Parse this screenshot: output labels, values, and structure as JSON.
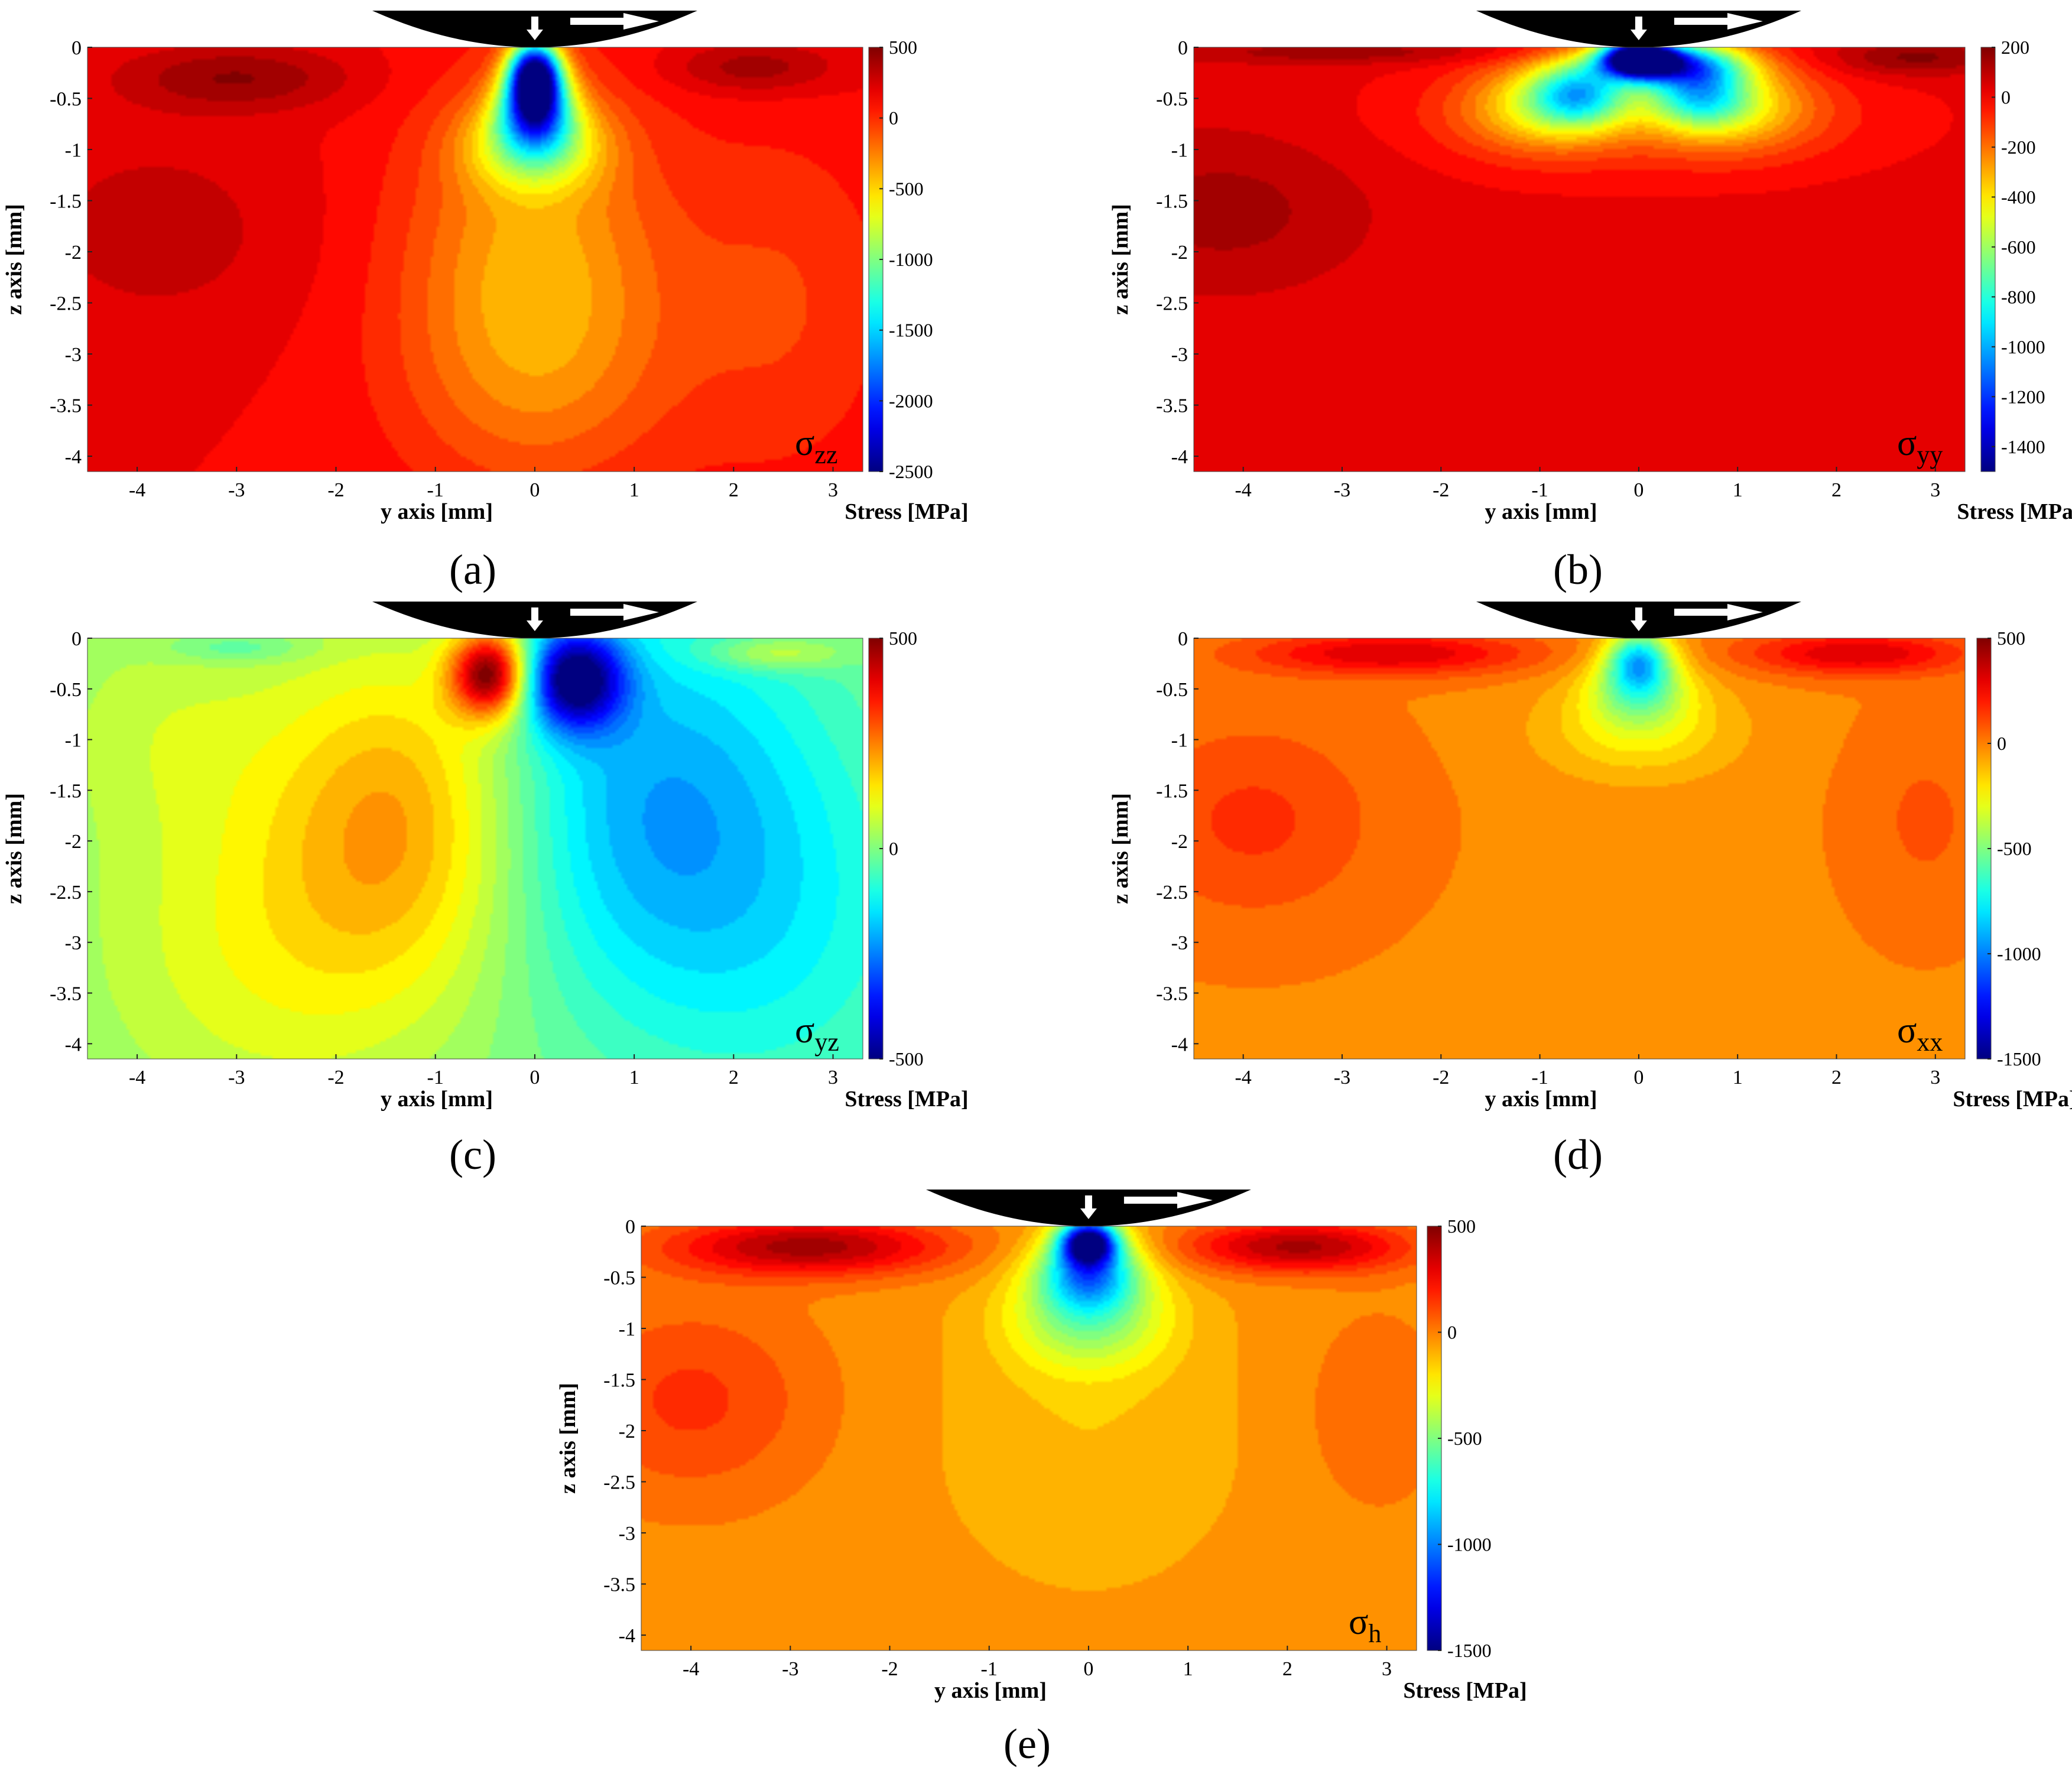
{
  "figure": {
    "panels": [
      {
        "id": "a",
        "caption": "(a)",
        "symbol": "σ",
        "subscript": "zz"
      },
      {
        "id": "b",
        "caption": "(b)",
        "symbol": "σ",
        "subscript": "yy"
      },
      {
        "id": "c",
        "caption": "(c)",
        "symbol": "σ",
        "subscript": "yz"
      },
      {
        "id": "d",
        "caption": "(d)",
        "symbol": "σ",
        "subscript": "xx"
      },
      {
        "id": "e",
        "caption": "(e)",
        "symbol": "σ",
        "subscript": "h"
      }
    ]
  },
  "chart_data": [
    {
      "panel": "a",
      "type": "heatmap",
      "title": "σzz",
      "xlabel": "y axis [mm]",
      "ylabel": "z axis [mm]",
      "colorbar_label": "Stress [MPa]",
      "xlim": [
        -4.5,
        3.3
      ],
      "ylim": [
        -4.15,
        0
      ],
      "xticks": [
        -4,
        -3,
        -2,
        -1,
        0,
        1,
        2,
        3
      ],
      "yticks": [
        0,
        -0.5,
        -1,
        -1.5,
        -2,
        -2.5,
        -3,
        -3.5,
        -4
      ],
      "colorbar_range": [
        -2500,
        500
      ],
      "colorbar_ticks": [
        500,
        0,
        -500,
        -1000,
        -1500,
        -2000,
        -2500
      ],
      "colormap": "jet",
      "background_value": 150,
      "features": [
        {
          "y": 0.0,
          "z": -0.25,
          "sy": 0.18,
          "sz": 0.22,
          "value": -2300
        },
        {
          "y": 0.0,
          "z": -0.6,
          "sy": 0.25,
          "sz": 0.25,
          "value": -1500
        },
        {
          "y": 0.0,
          "z": -0.95,
          "sy": 0.45,
          "sz": 0.3,
          "value": -700
        },
        {
          "y": 0.0,
          "z": -1.8,
          "sy": 0.9,
          "sz": 1.1,
          "value": -300
        },
        {
          "y": 0.0,
          "z": -3.2,
          "sy": 1.0,
          "sz": 0.9,
          "value": -150
        },
        {
          "y": -3.0,
          "z": -0.3,
          "sy": 0.8,
          "sz": 0.22,
          "value": 450
        },
        {
          "y": 2.2,
          "z": -0.2,
          "sy": 0.6,
          "sz": 0.18,
          "value": 430
        },
        {
          "y": -3.8,
          "z": -1.8,
          "sy": 1.0,
          "sz": 0.7,
          "value": 300
        },
        {
          "y": 2.5,
          "z": -2.5,
          "sy": 0.8,
          "sz": 1.2,
          "value": -50
        }
      ]
    },
    {
      "panel": "b",
      "type": "heatmap",
      "title": "σyy",
      "xlabel": "y axis [mm]",
      "ylabel": "z axis [mm]",
      "colorbar_label": "Stress [MPa]",
      "xlim": [
        -4.5,
        3.3
      ],
      "ylim": [
        -4.15,
        0
      ],
      "xticks": [
        -4,
        -3,
        -2,
        -1,
        0,
        1,
        2,
        3
      ],
      "yticks": [
        0,
        -0.5,
        -1,
        -1.5,
        -2,
        -2.5,
        -3,
        -3.5,
        -4
      ],
      "colorbar_range": [
        -1500,
        200
      ],
      "colorbar_ticks": [
        200,
        0,
        -200,
        -400,
        -600,
        -800,
        -1000,
        -1200,
        -1400
      ],
      "colormap": "jet",
      "background_value": 20,
      "features": [
        {
          "y": 0.0,
          "z": -0.1,
          "sy": 0.25,
          "sz": 0.12,
          "value": -1400
        },
        {
          "y": 0.3,
          "z": -0.15,
          "sy": 0.5,
          "sz": 0.15,
          "value": -900
        },
        {
          "y": -0.6,
          "z": -0.45,
          "sy": 0.35,
          "sz": 0.22,
          "value": -650
        },
        {
          "y": 0.6,
          "z": -0.45,
          "sy": 0.35,
          "sz": 0.22,
          "value": -600
        },
        {
          "y": -1.0,
          "z": -0.55,
          "sy": 0.55,
          "sz": 0.3,
          "value": -300
        },
        {
          "y": 1.0,
          "z": -0.55,
          "sy": 0.55,
          "sz": 0.3,
          "value": -280
        },
        {
          "y": 0.0,
          "z": -0.7,
          "sy": 1.5,
          "sz": 0.35,
          "value": -150
        },
        {
          "y": -4.2,
          "z": -1.6,
          "sy": 1.0,
          "sz": 0.55,
          "value": 140
        },
        {
          "y": 2.8,
          "z": -0.1,
          "sy": 0.6,
          "sz": 0.12,
          "value": 190
        },
        {
          "y": -3.0,
          "z": -0.05,
          "sy": 1.2,
          "sz": 0.08,
          "value": 150
        }
      ]
    },
    {
      "panel": "c",
      "type": "heatmap",
      "title": "σyz",
      "xlabel": "y axis [mm]",
      "ylabel": "z axis [mm]",
      "colorbar_label": "Stress [MPa]",
      "xlim": [
        -4.5,
        3.3
      ],
      "ylim": [
        -4.15,
        0
      ],
      "xticks": [
        -4,
        -3,
        -2,
        -1,
        0,
        1,
        2,
        3
      ],
      "yticks": [
        0,
        -0.5,
        -1,
        -1.5,
        -2,
        -2.5,
        -3,
        -3.5,
        -4
      ],
      "colorbar_range": [
        -500,
        500
      ],
      "colorbar_ticks": [
        500,
        0,
        -500
      ],
      "colormap": "jet",
      "background_value": 0,
      "features": [
        {
          "y": -0.45,
          "z": -0.35,
          "sy": 0.28,
          "sz": 0.3,
          "value": 500
        },
        {
          "y": 0.4,
          "z": -0.4,
          "sy": 0.35,
          "sz": 0.35,
          "value": -500
        },
        {
          "y": -1.3,
          "z": -1.7,
          "sy": 0.9,
          "sz": 1.2,
          "value": 200
        },
        {
          "y": -2.7,
          "z": -3.0,
          "sy": 1.3,
          "sz": 1.3,
          "value": 110
        },
        {
          "y": 1.2,
          "z": -1.6,
          "sy": 1.2,
          "sz": 1.4,
          "value": -200
        },
        {
          "y": 2.5,
          "z": -3.0,
          "sy": 1.2,
          "sz": 1.3,
          "value": -80
        },
        {
          "y": -3.7,
          "z": -0.8,
          "sy": 0.9,
          "sz": 0.8,
          "value": 60
        },
        {
          "y": 2.4,
          "z": -0.15,
          "sy": 0.5,
          "sz": 0.12,
          "value": 130
        },
        {
          "y": -3.0,
          "z": -0.1,
          "sy": 0.5,
          "sz": 0.1,
          "value": -80
        }
      ]
    },
    {
      "panel": "d",
      "type": "heatmap",
      "title": "σxx",
      "xlabel": "y axis [mm]",
      "ylabel": "z axis [mm]",
      "colorbar_label": "Stress [MPa]",
      "xlim": [
        -4.5,
        3.3
      ],
      "ylim": [
        -4.15,
        0
      ],
      "xticks": [
        -4,
        -3,
        -2,
        -1,
        0,
        1,
        2,
        3
      ],
      "yticks": [
        0,
        -0.5,
        -1,
        -1.5,
        -2,
        -2.5,
        -3,
        -3.5,
        -4
      ],
      "colorbar_range": [
        -1500,
        500
      ],
      "colorbar_ticks": [
        500,
        0,
        -500,
        -1000,
        -1500
      ],
      "colormap": "jet",
      "background_value": -10,
      "features": [
        {
          "y": 0.0,
          "z": -0.2,
          "sy": 0.22,
          "sz": 0.2,
          "value": -700
        },
        {
          "y": 0.0,
          "z": -0.5,
          "sy": 0.35,
          "sz": 0.25,
          "value": -450
        },
        {
          "y": 0.0,
          "z": -0.9,
          "sy": 0.7,
          "sz": 0.35,
          "value": -220
        },
        {
          "y": -3.9,
          "z": -1.8,
          "sy": 0.9,
          "sz": 0.7,
          "value": 150
        },
        {
          "y": -2.5,
          "z": -0.15,
          "sy": 1.0,
          "sz": 0.15,
          "value": 330
        },
        {
          "y": 2.2,
          "z": -0.15,
          "sy": 0.8,
          "sz": 0.15,
          "value": 330
        },
        {
          "y": 2.9,
          "z": -1.8,
          "sy": 0.5,
          "sz": 0.7,
          "value": 80
        }
      ]
    },
    {
      "panel": "e",
      "type": "heatmap",
      "title": "σh",
      "xlabel": "y axis [mm]",
      "ylabel": "z axis [mm]",
      "colorbar_label": "Stress [MPa]",
      "xlim": [
        -4.5,
        3.3
      ],
      "ylim": [
        -4.15,
        0
      ],
      "xticks": [
        -4,
        -3,
        -2,
        -1,
        0,
        1,
        2,
        3
      ],
      "yticks": [
        0,
        -0.5,
        -1,
        -1.5,
        -2,
        -2.5,
        -3,
        -3.5,
        -4
      ],
      "colorbar_range": [
        -1500,
        500
      ],
      "colorbar_ticks": [
        500,
        0,
        -500,
        -1000,
        -1500
      ],
      "colormap": "jet",
      "background_value": -40,
      "features": [
        {
          "y": 0.0,
          "z": -0.15,
          "sy": 0.2,
          "sz": 0.15,
          "value": -1400
        },
        {
          "y": 0.0,
          "z": -0.45,
          "sy": 0.35,
          "sz": 0.25,
          "value": -850
        },
        {
          "y": 0.0,
          "z": -0.9,
          "sy": 0.55,
          "sz": 0.35,
          "value": -450
        },
        {
          "y": 0.0,
          "z": -2.0,
          "sy": 1.0,
          "sz": 1.0,
          "value": -130
        },
        {
          "y": -2.8,
          "z": -0.2,
          "sy": 1.0,
          "sz": 0.2,
          "value": 430
        },
        {
          "y": 2.1,
          "z": -0.2,
          "sy": 0.8,
          "sz": 0.18,
          "value": 420
        },
        {
          "y": -4.0,
          "z": -1.7,
          "sy": 0.9,
          "sz": 0.7,
          "value": 150
        },
        {
          "y": 2.9,
          "z": -1.8,
          "sy": 0.5,
          "sz": 0.7,
          "value": 60
        }
      ]
    }
  ]
}
